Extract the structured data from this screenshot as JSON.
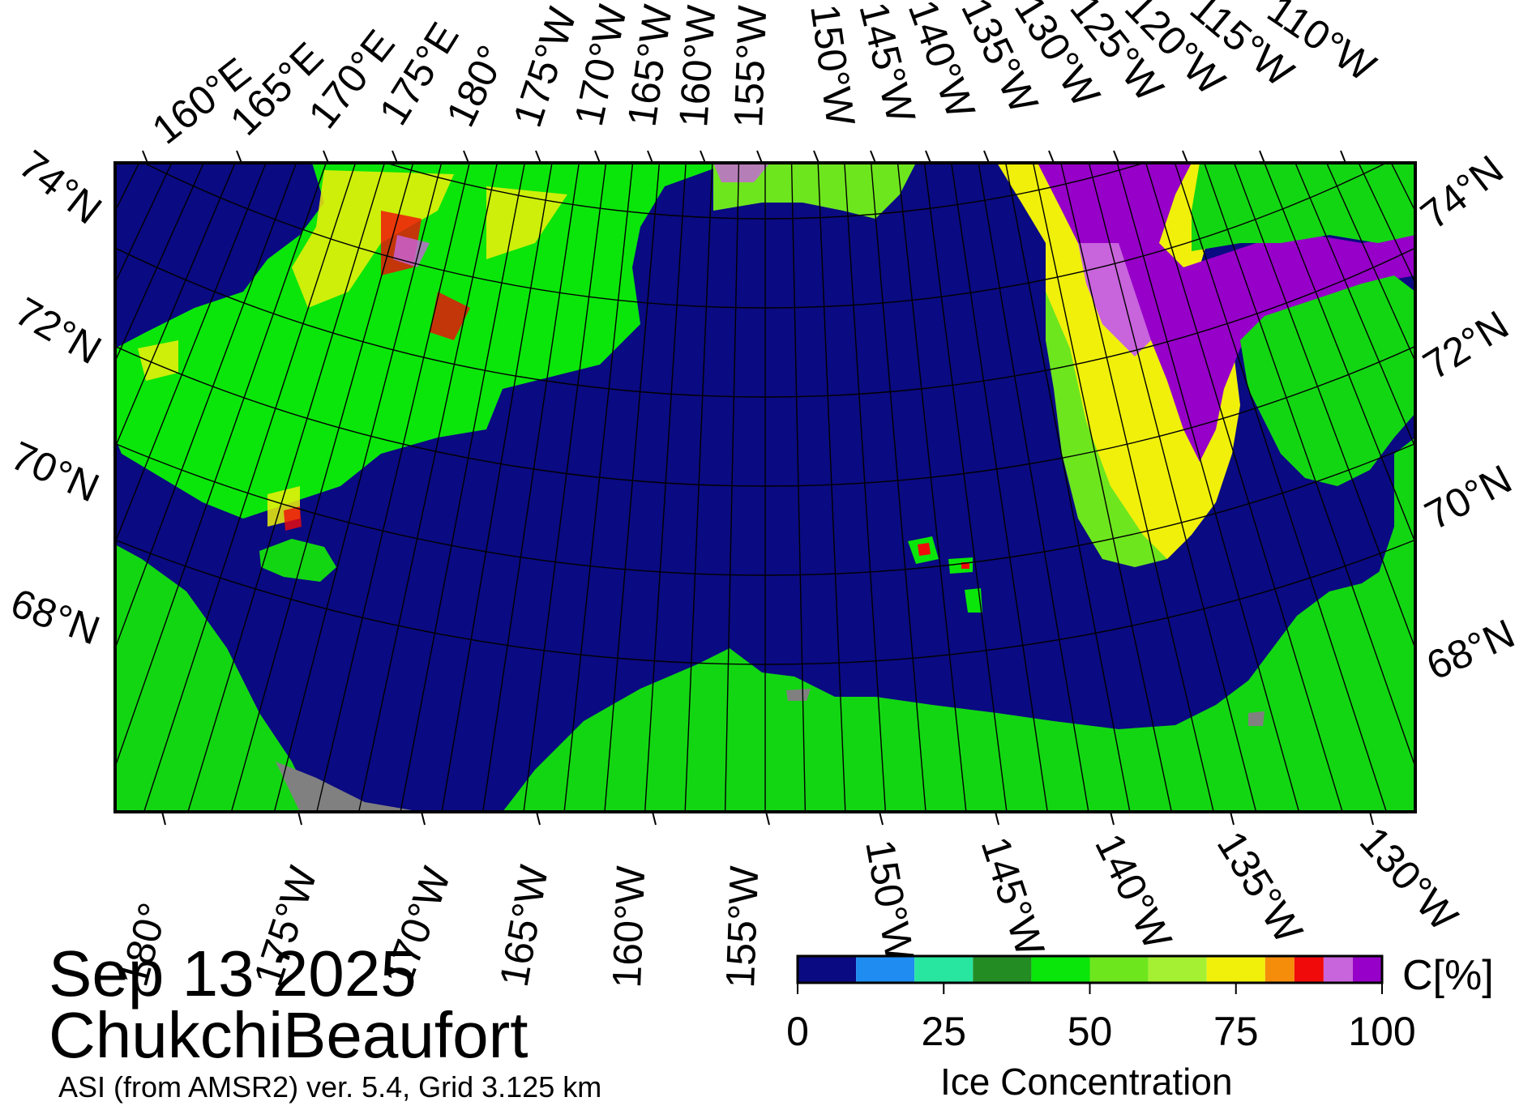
{
  "title": {
    "date": "Sep 13 2025",
    "region": "ChukchiBeaufort",
    "product": "ASI (from AMSR2) ver. 5.4,  Grid 3.125 km"
  },
  "map": {
    "top_lon_labels": [
      "160°E",
      "165°E",
      "170°E",
      "175°E",
      "180°",
      "175°W",
      "170°W",
      "165°W",
      "160°W",
      "155°W",
      "150°W",
      "145°W",
      "140°W",
      "135°W",
      "130°W",
      "125°W",
      "120°W",
      "115°W",
      "110°W"
    ],
    "bottom_lon_labels": [
      "180°",
      "175°W",
      "170°W",
      "165°W",
      "160°W",
      "155°W",
      "150°W",
      "145°W",
      "140°W",
      "135°W",
      "130°W"
    ],
    "left_lat_labels": [
      "74°N",
      "72°N",
      "70°N",
      "68°N"
    ],
    "right_lat_labels": [
      "74°N",
      "72°N",
      "70°N",
      "68°N"
    ],
    "colors": {
      "ocean": "#0a0a82",
      "land": "#13d613",
      "no_data": "#808080",
      "grid": "#000000"
    }
  },
  "colorbar": {
    "unit_label": "C[%]",
    "title": "Ice Concentration",
    "tick_labels": [
      "0",
      "25",
      "50",
      "75",
      "100"
    ],
    "colors": [
      "#0a0a82",
      "#1e8cf0",
      "#28e6a0",
      "#238c23",
      "#0ae60a",
      "#6ee61e",
      "#a5f032",
      "#f0f00a",
      "#f58c0a",
      "#f00a0a",
      "#c864dc",
      "#9600c8"
    ]
  }
}
